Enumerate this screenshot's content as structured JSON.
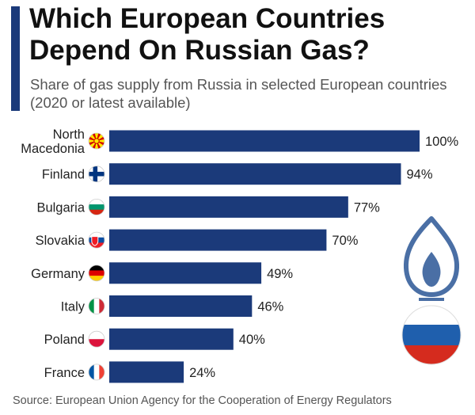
{
  "header": {
    "title": "Which European Countries Depend On Russian Gas?",
    "subtitle": "Share of gas supply from Russia in selected European countries (2020 or latest available)"
  },
  "footer": {
    "source": "Source: European Union Agency for the Cooperation of Energy Regulators"
  },
  "colors": {
    "accent": "#1b3a7a",
    "bar": "#1b3a7a",
    "gas_flame": "#4a6fa5",
    "flag_white": "#ffffff",
    "flag_blue": "#1f5fad",
    "flag_red": "#d52b1e"
  },
  "icons": [
    "gas-flame-icon",
    "russian-flag-icon",
    "north-macedonia-flag-icon",
    "finland-flag-icon",
    "bulgaria-flag-icon",
    "slovakia-flag-icon",
    "germany-flag-icon",
    "italy-flag-icon",
    "poland-flag-icon",
    "france-flag-icon"
  ],
  "chart_data": {
    "type": "bar",
    "orientation": "horizontal",
    "categories": [
      "North Macedonia",
      "Finland",
      "Bulgaria",
      "Slovakia",
      "Germany",
      "Italy",
      "Poland",
      "France"
    ],
    "category_lines": [
      [
        "North",
        "Macedonia"
      ],
      [
        "Finland"
      ],
      [
        "Bulgaria"
      ],
      [
        "Slovakia"
      ],
      [
        "Germany"
      ],
      [
        "Italy"
      ],
      [
        "Poland"
      ],
      [
        "France"
      ]
    ],
    "values": [
      100,
      94,
      77,
      70,
      49,
      46,
      40,
      24
    ],
    "data_labels": [
      "100%",
      "94%",
      "77%",
      "70%",
      "49%",
      "46%",
      "40%",
      "24%"
    ],
    "unit": "%",
    "xlim": [
      0,
      100
    ],
    "grid": false,
    "legend": "none"
  }
}
